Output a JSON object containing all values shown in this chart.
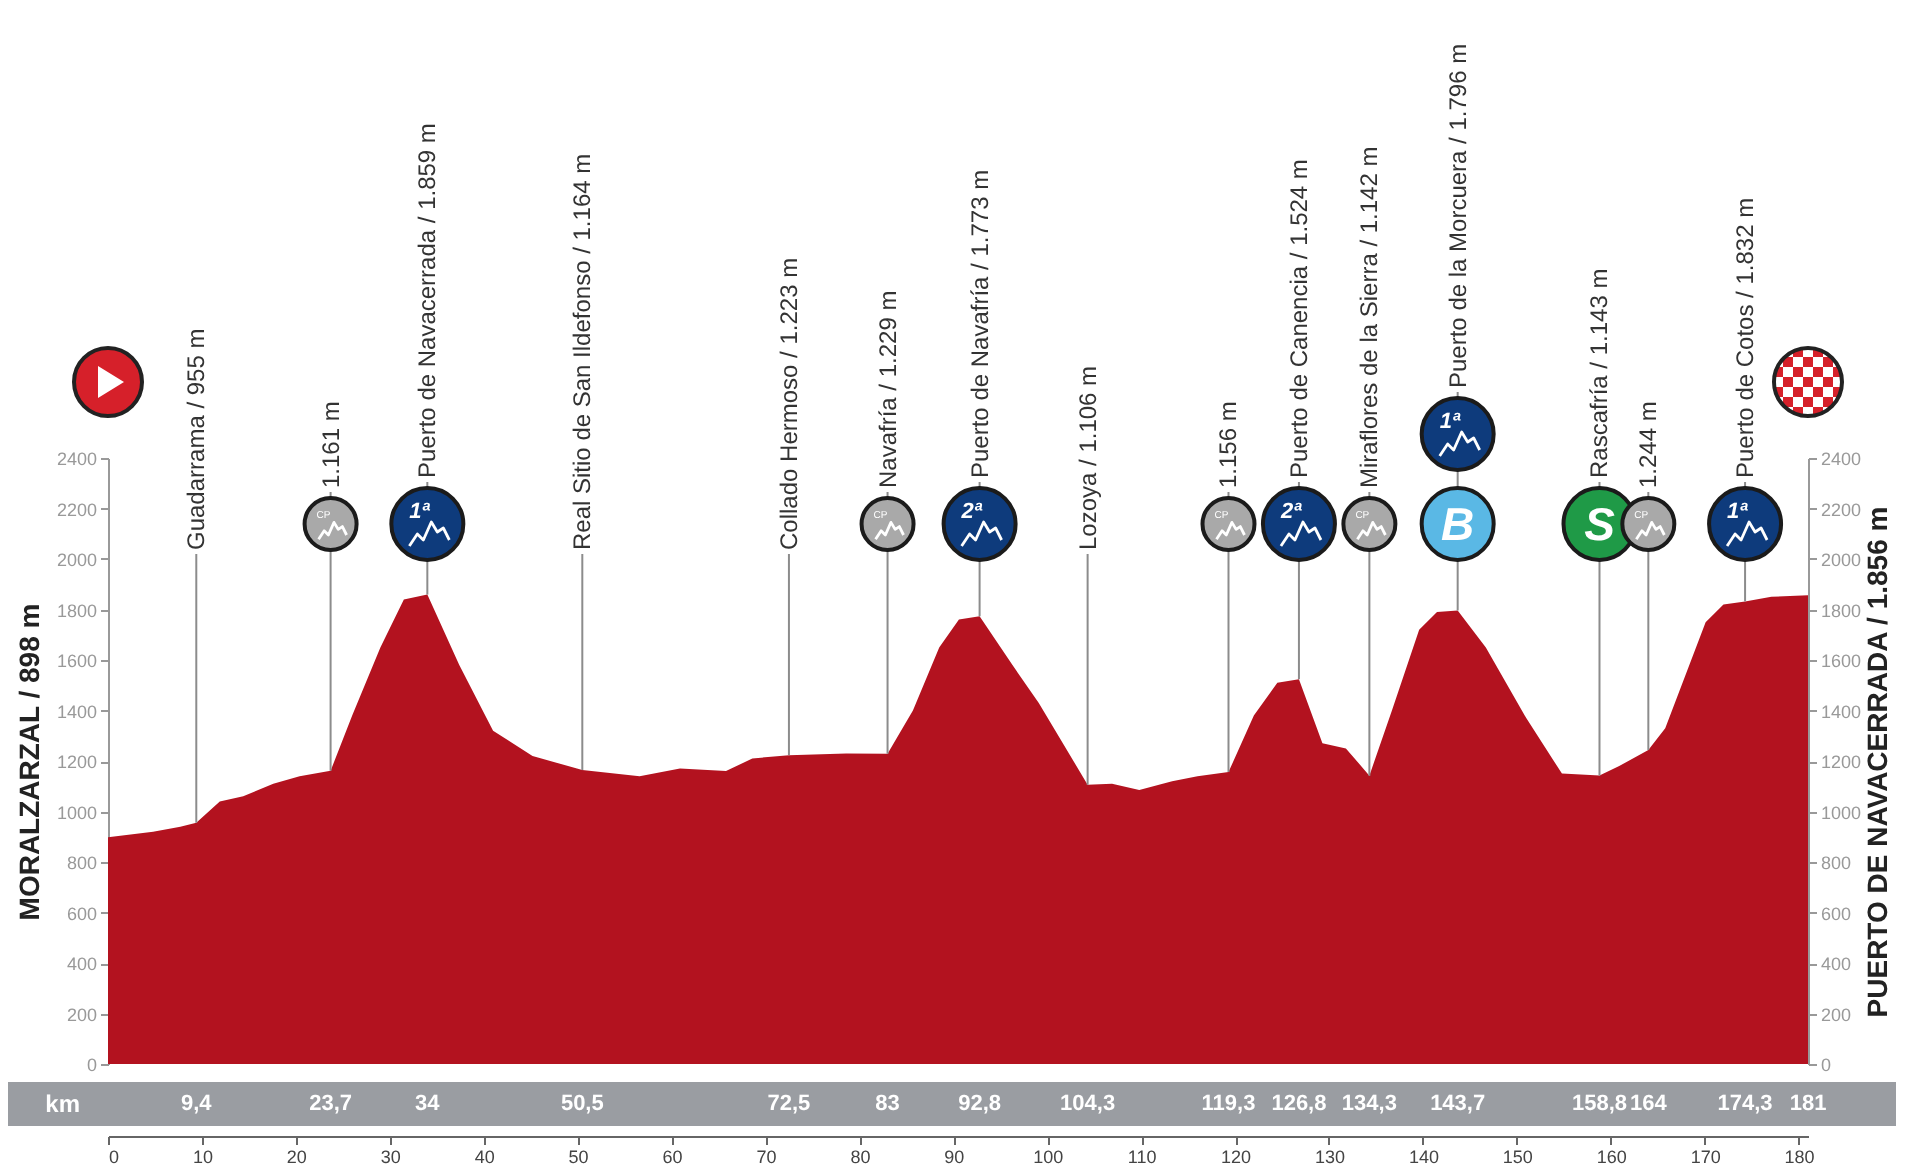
{
  "chart_data": {
    "type": "area",
    "color": "#b3121f",
    "x": [
      0,
      4.8,
      7.7,
      9.4,
      11.9,
      14.4,
      17.6,
      20.4,
      23.7,
      26,
      29,
      31.5,
      34,
      37.4,
      41,
      45.2,
      50.5,
      56.6,
      60.9,
      65.8,
      68.6,
      72.5,
      78.6,
      83,
      85.7,
      88.5,
      90.6,
      92.8,
      96.3,
      99.1,
      104.3,
      106.9,
      109.8,
      113.3,
      116,
      119.3,
      122,
      124.5,
      126.8,
      129.3,
      131.8,
      134.3,
      136.7,
      139.6,
      141.5,
      143.7,
      146.7,
      151,
      154.8,
      158.8,
      160.9,
      164,
      165.8,
      170.1,
      172,
      174.3,
      177.1,
      181
    ],
    "values": [
      898,
      920,
      940,
      955,
      1040,
      1060,
      1110,
      1140,
      1161,
      1380,
      1650,
      1840,
      1859,
      1580,
      1320,
      1220,
      1164,
      1140,
      1170,
      1160,
      1210,
      1223,
      1230,
      1229,
      1400,
      1650,
      1760,
      1773,
      1580,
      1430,
      1106,
      1110,
      1085,
      1120,
      1140,
      1156,
      1380,
      1510,
      1524,
      1270,
      1250,
      1142,
      1400,
      1720,
      1790,
      1796,
      1650,
      1370,
      1150,
      1143,
      1180,
      1244,
      1330,
      1750,
      1820,
      1832,
      1850,
      1856
    ],
    "xlim": [
      0,
      181
    ],
    "xticks": [
      0,
      10,
      20,
      30,
      40,
      50,
      60,
      70,
      80,
      90,
      100,
      110,
      120,
      130,
      140,
      150,
      160,
      170,
      180
    ],
    "ylim": [
      0,
      2400
    ],
    "yticks": [
      0,
      200,
      400,
      600,
      800,
      1000,
      1200,
      1400,
      1600,
      1800,
      2000,
      2200,
      2400
    ],
    "y2lim": [
      0,
      2400
    ],
    "y2ticks": [
      0,
      200,
      400,
      600,
      800,
      1000,
      1200,
      1400,
      1600,
      1800,
      2000,
      2200,
      2400
    ],
    "ylabel": "MORALZARZAL / 898 m",
    "y2label": "PUERTO DE NAVACERRADA / 1.856 m",
    "x2label": "km",
    "x2lim": [
      0,
      181
    ],
    "x2ticks": [
      {
        "value": 9.4,
        "label": "9,4"
      },
      {
        "value": 23.7,
        "label": "23,7"
      },
      34,
      {
        "value": 50.5,
        "label": "50,5"
      },
      {
        "value": 72.5,
        "label": "72,5"
      },
      83,
      {
        "value": 92.8,
        "label": "92,8"
      },
      {
        "value": 104.3,
        "label": "104,3"
      },
      {
        "value": 119.3,
        "label": "119,3"
      },
      {
        "value": 126.8,
        "label": "126,8"
      },
      {
        "value": 134.3,
        "label": "134,3"
      },
      {
        "value": 143.7,
        "label": "143,7"
      },
      {
        "value": 158.8,
        "label": "158,8"
      },
      164,
      {
        "value": 174.3,
        "label": "174,3"
      },
      181
    ],
    "annotations": [
      {
        "text": "Guadarrama / 955 m",
        "x": 9.4,
        "y": 955
      },
      {
        "text": "1.161 m",
        "x": 23.7,
        "y": 1161
      },
      {
        "text": "Puerto de Navacerrada / 1.859 m",
        "x": 34,
        "y": 1859
      },
      {
        "text": "Real Sitio de San Ildefonso / 1.164 m",
        "x": 50.5,
        "y": 1164
      },
      {
        "text": "Collado Hermoso / 1.223 m",
        "x": 72.5,
        "y": 1223
      },
      {
        "text": "Navafría / 1.229 m",
        "x": 83,
        "y": 1229
      },
      {
        "text": "Puerto de Navafría / 1.773 m",
        "x": 92.8,
        "y": 1773
      },
      {
        "text": "Lozoya / 1.106 m",
        "x": 104.3,
        "y": 1106
      },
      {
        "text": "1.156 m",
        "x": 119.3,
        "y": 1156
      },
      {
        "text": "Puerto de Canencia / 1.524 m",
        "x": 126.8,
        "y": 1524
      },
      {
        "text": "Miraflores de la Sierra / 1.142 m",
        "x": 134.3,
        "y": 1142
      },
      {
        "text": "Puerto de la Morcuera / 1.796 m",
        "x": 143.7,
        "y": 1796
      },
      {
        "text": "Rascafría / 1.143 m",
        "x": 158.8,
        "y": 1143
      },
      {
        "text": "1.244 m",
        "x": 164,
        "y": 1244
      },
      {
        "text": "Puerto de Cotos / 1.832 m",
        "x": 174.3,
        "y": 1832
      },
      "CP",
      "1ª",
      "CP",
      "2ª",
      "CP",
      "2ª",
      "CP",
      "1ª",
      "B",
      "S",
      "CP",
      "1ª"
    ]
  }
}
